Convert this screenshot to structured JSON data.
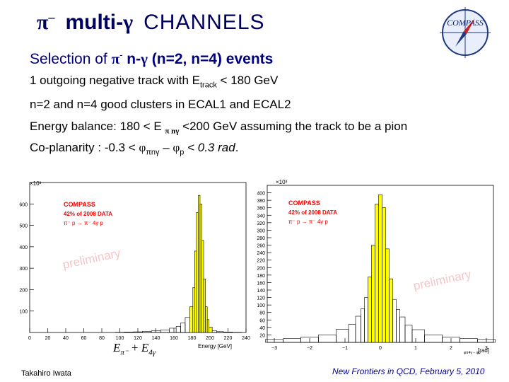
{
  "title": {
    "pi": "π",
    "minus": "–",
    "multi": "multi-",
    "gamma": "γ",
    "channels": "CHANNELS"
  },
  "logo": {
    "text": "COMPASS"
  },
  "subtitle": {
    "pre": "Selection of ",
    "pi": "π",
    "minus": "-",
    "mid": " n-",
    "gamma": "γ",
    "post": " (n=2, n=4) events"
  },
  "lines": {
    "l1_pre": "1 outgoing negative track with E",
    "l1_sub": "track",
    "l1_post": " < 180 GeV",
    "l2": "n=2 and n=4 good clusters in ECAL1 and ECAL2",
    "l3_pre": "Energy balance: 180 < E ",
    "l3_sub": "π nγ",
    "l3_post": " <200 GeV assuming the track to be a pion",
    "l4_pre": "Co-planarity : -0.3 < ",
    "l4_phi1": "φ",
    "l4_sub1": "πnγ",
    "l4_mid": " – ",
    "l4_phi2": "φ",
    "l4_sub2": "p",
    "l4_post": " < 0.3 rad",
    "l4_dot": "."
  },
  "plots": [
    {
      "exponent": "×10³",
      "legend": [
        "COMPASS",
        "42% of 2008 DATA",
        "π⁻ p → π⁻ 4γ p"
      ],
      "watermark": "preliminary",
      "xlabel": "Energy [GeV]",
      "colors": {
        "fill": "#ffff00",
        "line": "#000000",
        "legend": "#ff0000",
        "watermark": "#f3c7c7"
      }
    },
    {
      "exponent": "×10³",
      "legend": [
        "COMPASS",
        "42% of 2008 DATA",
        "π⁻ p → π⁻ 4γ p"
      ],
      "watermark": "preliminary",
      "xlabel": "[rad]",
      "xlabel_small": "φπ4γ − φp",
      "colors": {
        "fill": "#ffff00",
        "line": "#000000",
        "legend": "#ff0000",
        "watermark": "#f3c7c7"
      }
    }
  ],
  "chart_data": [
    {
      "type": "bar",
      "title": "",
      "xlabel": "Energy [GeV]",
      "ylabel": "",
      "y_exponent": "×10³",
      "xlim": [
        0,
        240
      ],
      "ylim": [
        0,
        700
      ],
      "xticks": [
        0,
        20,
        40,
        60,
        80,
        100,
        120,
        140,
        160,
        180,
        200,
        220,
        240
      ],
      "yticks": [
        100,
        200,
        300,
        400,
        500,
        600
      ],
      "selection_range": [
        180,
        200
      ],
      "x": [
        100,
        110,
        120,
        130,
        140,
        150,
        160,
        165,
        170,
        175,
        180,
        182,
        184,
        186,
        188,
        190,
        192,
        194,
        196,
        198,
        200,
        205,
        210,
        220,
        230,
        240
      ],
      "values": [
        1,
        2,
        3,
        5,
        8,
        12,
        20,
        28,
        45,
        70,
        120,
        210,
        380,
        560,
        640,
        600,
        430,
        250,
        120,
        60,
        25,
        8,
        4,
        2,
        1,
        0
      ]
    },
    {
      "type": "bar",
      "title": "",
      "xlabel": "φπ4γ − φp [rad]",
      "ylabel": "",
      "y_exponent": "×10³",
      "xlim": [
        -3.2,
        3.2
      ],
      "ylim": [
        0,
        420
      ],
      "xticks": [
        -3,
        -2,
        -1,
        0,
        1,
        2,
        3
      ],
      "yticks": [
        20,
        40,
        60,
        80,
        100,
        120,
        140,
        160,
        180,
        200,
        220,
        240,
        260,
        280,
        300,
        320,
        340,
        360,
        380,
        400
      ],
      "ytick_labels": [
        "20",
        "40",
        "60",
        "80",
        "100",
        "120",
        "140",
        "160",
        "180",
        "200",
        "220",
        "240",
        "260",
        "280",
        "300",
        "320",
        "340",
        "360",
        "380",
        "400"
      ],
      "selection_range": [
        -0.3,
        0.3
      ],
      "x": [
        -3.0,
        -2.5,
        -2.0,
        -1.5,
        -1.0,
        -0.8,
        -0.6,
        -0.5,
        -0.4,
        -0.3,
        -0.2,
        -0.1,
        0.0,
        0.1,
        0.2,
        0.3,
        0.4,
        0.5,
        0.6,
        0.8,
        1.0,
        1.5,
        2.0,
        2.5,
        3.0
      ],
      "values": [
        8,
        10,
        14,
        20,
        35,
        48,
        70,
        90,
        120,
        175,
        260,
        370,
        395,
        360,
        250,
        170,
        115,
        88,
        68,
        46,
        34,
        20,
        14,
        10,
        8
      ]
    }
  ],
  "formula": {
    "e1": "E",
    "sub1": "π⁻",
    "plus": " + ",
    "e2": "E",
    "sub2": "4γ"
  },
  "author": "Takahiro Iwata",
  "footer": "New Frontiers in QCD,  February 5, 2010"
}
